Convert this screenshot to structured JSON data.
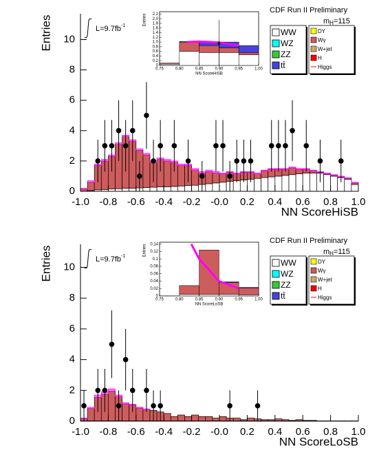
{
  "chart_data": [
    {
      "type": "histogram",
      "header": "CDF Run II Preliminary",
      "mass_label": "m",
      "mass_sub": "H",
      "mass_value": "=115",
      "lumi": "L=9.7fb",
      "lumi_sup": "-1",
      "xlabel": "NN ScoreHiSB",
      "ylabel": "Entries",
      "bins": [
        -1,
        -0.95,
        -0.9,
        -0.85,
        -0.8,
        -0.75,
        -0.7,
        -0.65,
        -0.6,
        -0.55,
        -0.5,
        -0.45,
        -0.4,
        -0.35,
        -0.3,
        -0.25,
        -0.2,
        -0.15,
        -0.1,
        -0.05,
        0,
        0.05,
        0.1,
        0.15,
        0.2,
        0.25,
        0.3,
        0.35,
        0.4,
        0.45,
        0.5,
        0.55,
        0.6,
        0.65,
        0.7,
        0.75,
        0.8,
        0.85,
        0.9,
        0.95,
        1
      ],
      "series": [
        {
          "name": "WW",
          "color": "#ffffff",
          "values": [
            0,
            0.05,
            0.1,
            0.12,
            0.15,
            0.17,
            0.2,
            0.2,
            0.22,
            0.25,
            0.27,
            0.3,
            0.3,
            0.32,
            0.35,
            0.38,
            0.4,
            0.45,
            0.5,
            0.55,
            0.6,
            0.65,
            0.7,
            0.75,
            0.8,
            0.85,
            0.9,
            0.95,
            1.0,
            1.05,
            1.1,
            1.15,
            1.2,
            1.2,
            1.2,
            1.1,
            1.0,
            0.9,
            0.8,
            0.45
          ]
        },
        {
          "name": "Wγ",
          "color": "#cd5c5c",
          "values": [
            0.15,
            0.55,
            1.6,
            1.88,
            2.15,
            2.93,
            3.4,
            3.1,
            2.48,
            2.15,
            1.63,
            1.8,
            1.7,
            1.58,
            1.35,
            1.32,
            1.0,
            0.75,
            0.8,
            0.65,
            0.55,
            0.6,
            0.45,
            0.5,
            0.45,
            0.3,
            0.45,
            0.5,
            0.45,
            0.4,
            0.45,
            0.3,
            0.25,
            0.15,
            0.05,
            0.05,
            0.05,
            0.05,
            0.05,
            0.1
          ]
        },
        {
          "name": "Higgs",
          "color": "#ff00ff",
          "values": [
            0.05,
            0.1,
            0.1,
            0.1,
            0.1,
            0.1,
            0.1,
            0.1,
            0.1,
            0.1,
            0.1,
            0.1,
            0.1,
            0.1,
            0.1,
            0.1,
            0.1,
            0.1,
            0.1,
            0.1,
            0.05,
            0.05,
            0.05,
            0.05,
            0.05,
            0.05,
            0.05,
            0.05,
            0.05,
            0.05,
            0.05,
            0.05,
            0.05,
            0.05,
            0.05,
            0.05,
            0.05,
            0.05,
            0.05,
            0.05
          ]
        }
      ],
      "data": {
        "x": [
          -0.875,
          -0.825,
          -0.775,
          -0.725,
          -0.675,
          -0.625,
          -0.575,
          -0.525,
          -0.475,
          -0.425,
          -0.325,
          -0.225,
          -0.125,
          -0.025,
          0.025,
          0.075,
          0.125,
          0.175,
          0.225,
          0.375,
          0.425,
          0.475,
          0.525,
          0.625,
          0.725,
          0.875
        ],
        "values": [
          2,
          3,
          3,
          4,
          3,
          4,
          1,
          5,
          2,
          3,
          3,
          2,
          1,
          3,
          3,
          1,
          2,
          2,
          2,
          3,
          3,
          3,
          4,
          3,
          2,
          2
        ],
        "errors": [
          1.4,
          1.7,
          1.7,
          2,
          1.7,
          2,
          1,
          2.2,
          1.4,
          1.7,
          1.7,
          1.4,
          1,
          1.7,
          1.7,
          1,
          1.4,
          1.4,
          1.4,
          1.7,
          1.7,
          1.7,
          2,
          1.7,
          1.4,
          1.4
        ]
      },
      "xlim": [
        -1,
        1
      ],
      "ylim": [
        0,
        11.7
      ],
      "xticks": [
        {
          "value": -1,
          "label": "-1.0"
        },
        -0.8,
        -0.6,
        -0.4,
        -0.2,
        {
          "value": 0,
          "label": "-0.0"
        },
        0.2,
        0.4,
        0.6,
        0.8,
        {
          "value": 1,
          "label": "1.0"
        }
      ],
      "yticks": [
        0,
        2,
        4,
        6,
        8,
        10
      ],
      "legend": [
        {
          "name": "WW",
          "color": "#ffffff"
        },
        {
          "name": "WZ",
          "color": "#00ffff"
        },
        {
          "name": "ZZ",
          "color": "#33cc33"
        },
        {
          "name": "tt̄",
          "color": "#4444dd"
        },
        {
          "name": "DY",
          "color": "#ffff00"
        },
        {
          "name": "Wγ",
          "color": "#cd5c5c"
        },
        {
          "name": "W+jet",
          "color": "#d2a56c"
        },
        {
          "name": "H",
          "color": "#ff0000"
        },
        {
          "name": "Higgs",
          "color": "#ff0000",
          "style": "line"
        }
      ]
    },
    {
      "type": "histogram",
      "xlabel": "NN ScoreHiSB",
      "ylabel": "Entries",
      "bins": [
        0.75,
        0.8,
        0.85,
        0.9,
        0.95,
        1
      ],
      "series": [
        {
          "name": "WW",
          "color": "#ffffff",
          "values": [
            0.05,
            0.6,
            0.55,
            0.55,
            0.45
          ]
        },
        {
          "name": "Wγ",
          "color": "#cd5c5c",
          "values": [
            0.05,
            0.4,
            0.3,
            0.2,
            0.1
          ]
        },
        {
          "name": "tt̄",
          "color": "#4444dd",
          "values": [
            0,
            0.02,
            0.15,
            0.25,
            0.3
          ]
        },
        {
          "name": "Higgs",
          "color": "#ff00ff",
          "x": [
            0.82,
            0.85,
            0.9,
            0.95
          ],
          "values": [
            1.0,
            1.02,
            0.98,
            0.85
          ]
        }
      ],
      "data": {
        "x": [
          0.9
        ],
        "values": [
          0.95
        ],
        "errors": [
          1.0
        ]
      },
      "xlim": [
        0.75,
        1
      ],
      "ylim": [
        0,
        2.3
      ],
      "xticks": [
        0.75,
        {
          "value": 0.8,
          "label": "0.80"
        },
        0.85,
        {
          "value": 0.9,
          "label": "0.90"
        },
        0.95,
        {
          "value": 1,
          "label": "1.00"
        }
      ],
      "yticks": [
        0,
        0.2,
        0.4,
        0.6,
        0.8,
        {
          "value": 1,
          "label": "1.0"
        },
        1.2,
        1.4,
        1.6,
        1.8,
        {
          "value": 2,
          "label": "2.0"
        },
        2.2
      ]
    },
    {
      "type": "histogram",
      "header": "CDF Run II Preliminary",
      "mass_label": "m",
      "mass_sub": "H",
      "mass_value": "=115",
      "lumi": "L=9.7fb",
      "lumi_sup": "-1",
      "xlabel": "NN ScoreLoSB",
      "ylabel": "Entries",
      "bins": [
        -1,
        -0.95,
        -0.9,
        -0.85,
        -0.8,
        -0.75,
        -0.7,
        -0.65,
        -0.6,
        -0.55,
        -0.5,
        -0.45,
        -0.4,
        -0.35,
        -0.3,
        -0.25,
        -0.2,
        -0.15,
        -0.1,
        -0.05,
        0,
        0.05,
        0.1,
        0.15,
        0.2,
        0.25,
        0.3,
        0.35,
        0.4,
        0.45,
        0.5,
        0.55,
        0.6,
        0.65,
        0.7,
        0.75,
        0.8,
        0.85,
        0.9,
        0.95,
        1
      ],
      "series": [
        {
          "name": "WW",
          "color": "#ffffff",
          "values": [
            0.02,
            0.02,
            0.02,
            0.02,
            0.02,
            0.02,
            0.02,
            0.02,
            0.02,
            0.02,
            0.02,
            0.02,
            0.02,
            0.02,
            0.02,
            0.02,
            0.02,
            0.02,
            0.02,
            0.02,
            0.02,
            0.02,
            0.02,
            0.02,
            0.02,
            0.02,
            0.02,
            0.02,
            0.02,
            0.02,
            0.02,
            0.02,
            0.02,
            0.02,
            0.02,
            0.02,
            0.02,
            0.02,
            0.02,
            0.02
          ]
        },
        {
          "name": "Wγ",
          "color": "#cd5c5c",
          "values": [
            0.16,
            0.8,
            1.53,
            1.73,
            1.93,
            1.58,
            1.1,
            1.03,
            0.83,
            0.73,
            0.68,
            0.58,
            0.48,
            0.28,
            0.38,
            0.28,
            0.38,
            0.28,
            0.28,
            0.18,
            0.28,
            0.18,
            0.18,
            0.08,
            0.18,
            0.13,
            0.08,
            0.08,
            0.13,
            0.08,
            0.03,
            0.08,
            0.03,
            0.03,
            0,
            0,
            0,
            0,
            0,
            0
          ]
        },
        {
          "name": "Higgs",
          "color": "#ff00ff",
          "values": [
            0.02,
            0.08,
            0.15,
            0.15,
            0.15,
            0.1,
            0.08,
            0.05,
            0.05,
            0.05,
            0,
            0,
            0,
            0,
            0,
            0,
            0,
            0,
            0,
            0,
            0,
            0,
            0,
            0,
            0,
            0,
            0,
            0,
            0,
            0,
            0,
            0,
            0,
            0,
            0,
            0,
            0,
            0,
            0,
            0
          ]
        }
      ],
      "data": {
        "x": [
          -0.975,
          -0.875,
          -0.825,
          -0.775,
          -0.725,
          -0.675,
          -0.625,
          -0.525,
          -0.475,
          -0.425,
          0.075,
          0.275
        ],
        "values": [
          1,
          2,
          2,
          5,
          1,
          4,
          2,
          2,
          1,
          1,
          1,
          1
        ],
        "errors": [
          1,
          1.4,
          1.4,
          2.2,
          1,
          2,
          1.4,
          1.4,
          1,
          1,
          1,
          1
        ]
      },
      "xlim": [
        -1,
        1
      ],
      "ylim": [
        0,
        11.5
      ],
      "xticks": [
        {
          "value": -1,
          "label": "-1.0"
        },
        -0.8,
        -0.6,
        -0.4,
        -0.2,
        {
          "value": 0,
          "label": "-0.0"
        },
        0.2,
        0.4,
        0.6,
        0.8,
        {
          "value": 1,
          "label": "1.0"
        }
      ],
      "yticks": [
        0,
        2,
        4,
        6,
        8,
        10
      ],
      "legend": [
        {
          "name": "WW",
          "color": "#ffffff"
        },
        {
          "name": "WZ",
          "color": "#00ffff"
        },
        {
          "name": "ZZ",
          "color": "#33cc33"
        },
        {
          "name": "tt̄",
          "color": "#4444dd"
        },
        {
          "name": "DY",
          "color": "#ffff00"
        },
        {
          "name": "Wγ",
          "color": "#cd5c5c"
        },
        {
          "name": "W+jet",
          "color": "#d2a56c"
        },
        {
          "name": "H",
          "color": "#ff0000"
        },
        {
          "name": "Higgs",
          "color": "#ff0000",
          "style": "line"
        }
      ]
    },
    {
      "type": "histogram",
      "xlabel": "NN ScoreLoSB",
      "ylabel": "Entries",
      "bins": [
        0.75,
        0.8,
        0.85,
        0.9,
        0.95,
        1
      ],
      "series": [
        {
          "name": "WW",
          "color": "#ffffff",
          "values": [
            0,
            0.004,
            0.004,
            0.004,
            0.003
          ]
        },
        {
          "name": "Wγ",
          "color": "#cd5c5c",
          "values": [
            0,
            0.024,
            0.12,
            0.032,
            0.018
          ]
        },
        {
          "name": "tt̄",
          "color": "#4444dd",
          "values": [
            0,
            0,
            0,
            0.002,
            0.002
          ]
        },
        {
          "name": "Higgs",
          "color": "#ff00ff",
          "x": [
            0.83,
            0.85,
            0.9,
            0.95
          ],
          "values": [
            0.14,
            0.1,
            0.04,
            0.02
          ]
        }
      ],
      "xlim": [
        0.75,
        1
      ],
      "ylim": [
        0,
        0.145
      ],
      "xticks": [
        0.75,
        {
          "value": 0.8,
          "label": "0.80"
        },
        0.85,
        {
          "value": 0.9,
          "label": "0.90"
        },
        0.95,
        {
          "value": 1,
          "label": "1.00"
        }
      ],
      "yticks": [
        0,
        0.02,
        0.04,
        0.06,
        0.08,
        0.1,
        0.12,
        0.14
      ]
    }
  ]
}
